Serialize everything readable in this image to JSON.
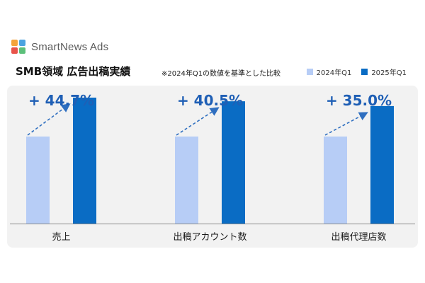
{
  "brand": {
    "name": "SmartNews Ads",
    "icon": "smartnews-logo-icon",
    "icon_colors": [
      "#f4a43b",
      "#4aa3e0",
      "#e8534a",
      "#5cc07a"
    ]
  },
  "header": {
    "title": "SMB領域 広告出稿実績",
    "subtitle": "※2024年Q1の数値を基準とした比較"
  },
  "colors": {
    "q1_2024": "#b7cdf6",
    "q1_2025": "#0a6cc4",
    "growth_label": "#1f5fb5",
    "arrow": "#2f6fc0"
  },
  "chart_data": {
    "type": "bar",
    "categories": [
      "売上",
      "出稿アカウント数",
      "出稿代理店数"
    ],
    "series": [
      {
        "name": "2024年Q1",
        "values": [
          100,
          100,
          100
        ]
      },
      {
        "name": "2025年Q1",
        "values": [
          144.7,
          140.5,
          135.0
        ]
      }
    ],
    "annotations": [
      "+ 44.7%",
      "+ 40.5%",
      "+ 35.0%"
    ],
    "legend_position": "top-right",
    "grid": false
  }
}
